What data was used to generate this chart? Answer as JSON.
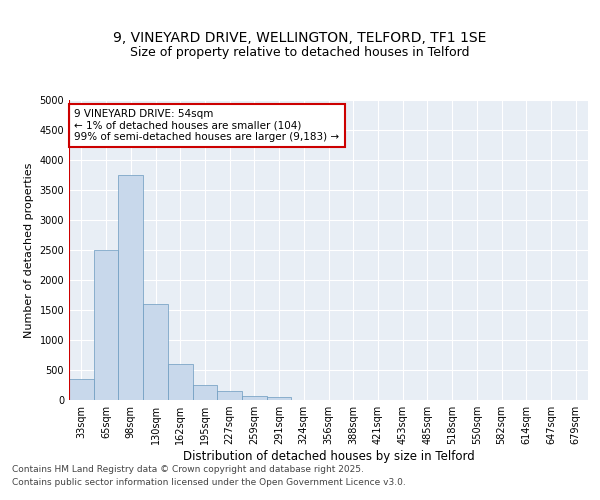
{
  "title_line1": "9, VINEYARD DRIVE, WELLINGTON, TELFORD, TF1 1SE",
  "title_line2": "Size of property relative to detached houses in Telford",
  "xlabel": "Distribution of detached houses by size in Telford",
  "ylabel": "Number of detached properties",
  "categories": [
    "33sqm",
    "65sqm",
    "98sqm",
    "130sqm",
    "162sqm",
    "195sqm",
    "227sqm",
    "259sqm",
    "291sqm",
    "324sqm",
    "356sqm",
    "388sqm",
    "421sqm",
    "453sqm",
    "485sqm",
    "518sqm",
    "550sqm",
    "582sqm",
    "614sqm",
    "647sqm",
    "679sqm"
  ],
  "values": [
    350,
    2500,
    3750,
    1600,
    600,
    250,
    150,
    70,
    45,
    0,
    0,
    0,
    0,
    0,
    0,
    0,
    0,
    0,
    0,
    0,
    0
  ],
  "bar_color": "#c8d8eb",
  "bar_edge_color": "#6a9abf",
  "highlight_line_color": "#cc0000",
  "highlight_bar_index": 0,
  "ylim": [
    0,
    5000
  ],
  "yticks": [
    0,
    500,
    1000,
    1500,
    2000,
    2500,
    3000,
    3500,
    4000,
    4500,
    5000
  ],
  "annotation_title": "9 VINEYARD DRIVE: 54sqm",
  "annotation_line1": "← 1% of detached houses are smaller (104)",
  "annotation_line2": "99% of semi-detached houses are larger (9,183) →",
  "annotation_box_facecolor": "#ffffff",
  "annotation_box_edgecolor": "#cc0000",
  "background_color": "#e8eef5",
  "grid_color": "#ffffff",
  "footer_line1": "Contains HM Land Registry data © Crown copyright and database right 2025.",
  "footer_line2": "Contains public sector information licensed under the Open Government Licence v3.0.",
  "title_fontsize": 10,
  "subtitle_fontsize": 9,
  "ylabel_fontsize": 8,
  "xlabel_fontsize": 8.5,
  "tick_fontsize": 7,
  "annotation_fontsize": 7.5,
  "footer_fontsize": 6.5
}
